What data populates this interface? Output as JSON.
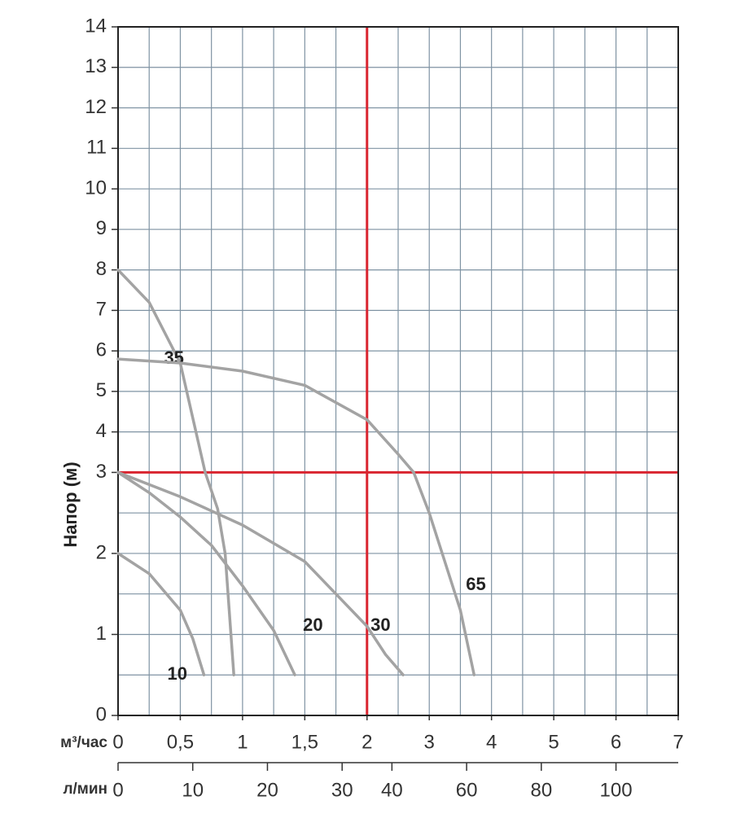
{
  "chart_data": {
    "type": "line",
    "ylabel": "Напор (м)",
    "xlabel": "м³/час",
    "x2label": "л/мин",
    "x": [],
    "series": [
      {
        "name": "10",
        "color": "#a3a3a3",
        "x": [
          0,
          0.25,
          0.5,
          0.6,
          0.69
        ],
        "values": [
          2,
          1.75,
          1.3,
          0.95,
          0.5
        ]
      },
      {
        "name": "20",
        "color": "#a3a3a3",
        "x": [
          0,
          0.25,
          0.5,
          0.75,
          1,
          1.25,
          1.42
        ],
        "values": [
          3,
          2.75,
          2.45,
          2.1,
          1.6,
          1.05,
          0.5
        ]
      },
      {
        "name": "30",
        "color": "#a3a3a3",
        "x": [
          0,
          0.5,
          1,
          1.5,
          2,
          2.3,
          2.58
        ],
        "values": [
          3,
          2.7,
          2.35,
          1.9,
          1.1,
          0.75,
          0.5
        ]
      },
      {
        "name": "35",
        "color": "#a3a3a3",
        "x": [
          0,
          0.25,
          0.5,
          0.7,
          0.8,
          0.86,
          0.93
        ],
        "values": [
          8,
          7.2,
          5.7,
          3,
          2.55,
          2,
          0.5
        ]
      },
      {
        "name": "65",
        "color": "#a3a3a3",
        "x": [
          0,
          0.5,
          1,
          1.5,
          2,
          2.5,
          2.75,
          3,
          3.25,
          3.5,
          3.72
        ],
        "values": [
          5.8,
          5.7,
          5.5,
          5.15,
          4.3,
          3.45,
          3,
          2.5,
          1.9,
          1.3,
          0.5
        ]
      }
    ],
    "xlim": [
      0,
      7
    ],
    "ylim": [
      0,
      14
    ],
    "xticks": [
      0,
      {
        "value": 0.5,
        "label": "0,5"
      },
      1,
      {
        "value": 1.5,
        "label": "1,5"
      },
      2,
      3,
      4,
      5,
      6,
      7
    ],
    "yticks": [
      0,
      1,
      2,
      3,
      4,
      5,
      6,
      7,
      8,
      9,
      10,
      11,
      12,
      13,
      14
    ],
    "x2ticks": [
      0,
      10,
      20,
      30,
      40,
      60,
      80,
      100
    ],
    "reference_lines": {
      "x": 2,
      "y": 3,
      "color": "#d9242f"
    },
    "grid": true
  }
}
